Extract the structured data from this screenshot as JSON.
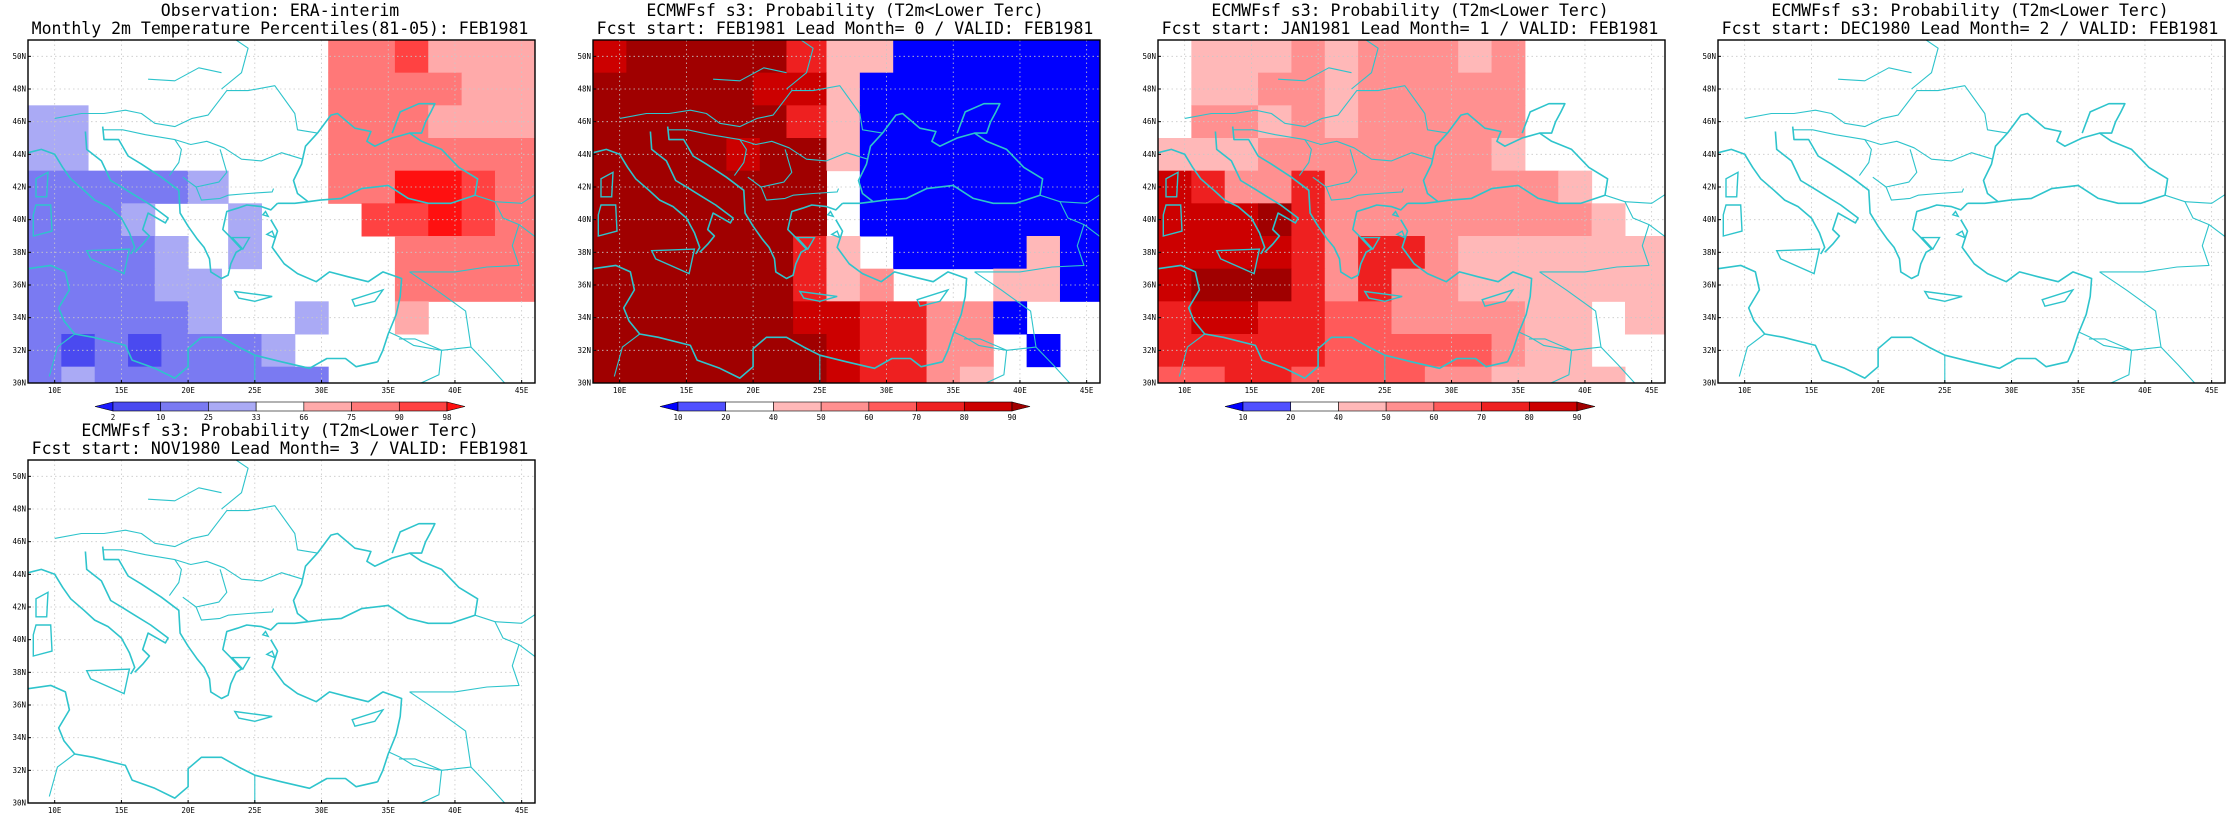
{
  "page": {
    "background": "#ffffff"
  },
  "map_region": {
    "lon_range": [
      8,
      46
    ],
    "lat_range": [
      30,
      51
    ],
    "lon_ticks": [
      "10E",
      "15E",
      "20E",
      "25E",
      "30E",
      "35E",
      "40E",
      "45E"
    ],
    "lat_ticks": [
      "30N",
      "32N",
      "34N",
      "36N",
      "38N",
      "40N",
      "42N",
      "44N",
      "46N",
      "48N",
      "50N"
    ],
    "coastline_color": "#2ec4cc",
    "grid": "dotted",
    "grid_color": "#c8c8c8"
  },
  "panels": [
    {
      "id": "obs",
      "title_line1": "Observation: ERA-interim",
      "title_line2": "Monthly 2m Temperature Percentiles(81-05): FEB1981",
      "has_data": true,
      "colorbar": {
        "labels": [
          "2",
          "10",
          "25",
          "33",
          "66",
          "75",
          "90",
          "98"
        ],
        "colors": [
          "#1a1aff",
          "#4a4af0",
          "#7a7af2",
          "#aaaaf5",
          "#ffffff",
          "#ffaaaa",
          "#ff7878",
          "#ff4242",
          "#ff1010"
        ]
      }
    },
    {
      "id": "lead0",
      "title_line1": "ECMWFsf s3: Probability (T2m<Lower Terc)",
      "title_line2": "Fcst start: FEB1981  Lead Month= 0 / VALID: FEB1981",
      "has_data": true,
      "colorbar": {
        "labels": [
          "10",
          "20",
          "40",
          "50",
          "60",
          "70",
          "80",
          "90"
        ],
        "colors": [
          "#0000ff",
          "#5050ff",
          "#ffffff",
          "#ffb8b8",
          "#ff9090",
          "#ff5a5a",
          "#ee2020",
          "#cc0000",
          "#a00000"
        ]
      }
    },
    {
      "id": "lead1",
      "title_line1": "ECMWFsf s3: Probability (T2m<Lower Terc)",
      "title_line2": "Fcst start: JAN1981  Lead Month= 1 / VALID: FEB1981",
      "has_data": true,
      "colorbar": {
        "labels": [
          "10",
          "20",
          "40",
          "50",
          "60",
          "70",
          "80",
          "90"
        ],
        "colors": [
          "#0000ff",
          "#5050ff",
          "#ffffff",
          "#ffb8b8",
          "#ff9090",
          "#ff5a5a",
          "#ee2020",
          "#cc0000",
          "#a00000"
        ]
      }
    },
    {
      "id": "lead2",
      "title_line1": "ECMWFsf s3: Probability (T2m<Lower Terc)",
      "title_line2": "Fcst start: DEC1980  Lead Month= 2 / VALID: FEB1981",
      "has_data": false
    },
    {
      "id": "lead3",
      "title_line1": "ECMWFsf s3: Probability (T2m<Lower Terc)",
      "title_line2": "Fcst start: NOV1980  Lead Month= 3 / VALID: FEB1981",
      "has_data": false
    }
  ]
}
